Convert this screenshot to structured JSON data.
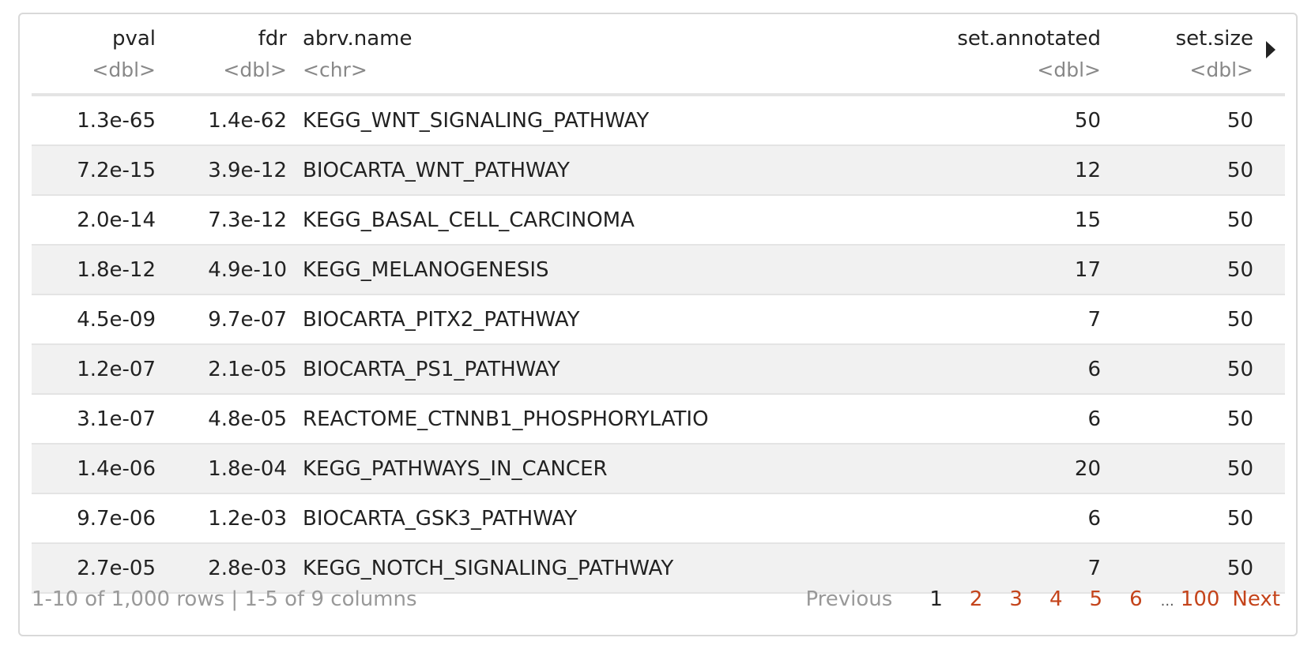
{
  "columns": [
    {
      "name": "pval",
      "type": "<dbl>"
    },
    {
      "name": "fdr",
      "type": "<dbl>"
    },
    {
      "name": "abrv.name",
      "type": "<chr>"
    },
    {
      "name": "set.annotated",
      "type": "<dbl>"
    },
    {
      "name": "set.size",
      "type": "<dbl>"
    }
  ],
  "rows": [
    {
      "pval": "1.3e-65",
      "fdr": "1.4e-62",
      "name": "KEGG_WNT_SIGNALING_PATHWAY",
      "annotated": "50",
      "size": "50"
    },
    {
      "pval": "7.2e-15",
      "fdr": "3.9e-12",
      "name": "BIOCARTA_WNT_PATHWAY",
      "annotated": "12",
      "size": "50"
    },
    {
      "pval": "2.0e-14",
      "fdr": "7.3e-12",
      "name": "KEGG_BASAL_CELL_CARCINOMA",
      "annotated": "15",
      "size": "50"
    },
    {
      "pval": "1.8e-12",
      "fdr": "4.9e-10",
      "name": "KEGG_MELANOGENESIS",
      "annotated": "17",
      "size": "50"
    },
    {
      "pval": "4.5e-09",
      "fdr": "9.7e-07",
      "name": "BIOCARTA_PITX2_PATHWAY",
      "annotated": "7",
      "size": "50"
    },
    {
      "pval": "1.2e-07",
      "fdr": "2.1e-05",
      "name": "BIOCARTA_PS1_PATHWAY",
      "annotated": "6",
      "size": "50"
    },
    {
      "pval": "3.1e-07",
      "fdr": "4.8e-05",
      "name": "REACTOME_CTNNB1_PHOSPHORYLATIO",
      "annotated": "6",
      "size": "50"
    },
    {
      "pval": "1.4e-06",
      "fdr": "1.8e-04",
      "name": "KEGG_PATHWAYS_IN_CANCER",
      "annotated": "20",
      "size": "50"
    },
    {
      "pval": "9.7e-06",
      "fdr": "1.2e-03",
      "name": "BIOCARTA_GSK3_PATHWAY",
      "annotated": "6",
      "size": "50"
    },
    {
      "pval": "2.7e-05",
      "fdr": "2.8e-03",
      "name": "KEGG_NOTCH_SIGNALING_PATHWAY",
      "annotated": "7",
      "size": "50"
    }
  ],
  "footer": {
    "summary": "1-10 of 1,000 rows | 1-5 of 9 columns",
    "previous": "Previous",
    "pages": [
      "1",
      "2",
      "3",
      "4",
      "5",
      "6"
    ],
    "ellipsis": "...",
    "last_page": "100",
    "next": "Next"
  },
  "colors": {
    "link": "#c4441b",
    "stripe": "#f1f1f1",
    "muted": "#999999"
  }
}
